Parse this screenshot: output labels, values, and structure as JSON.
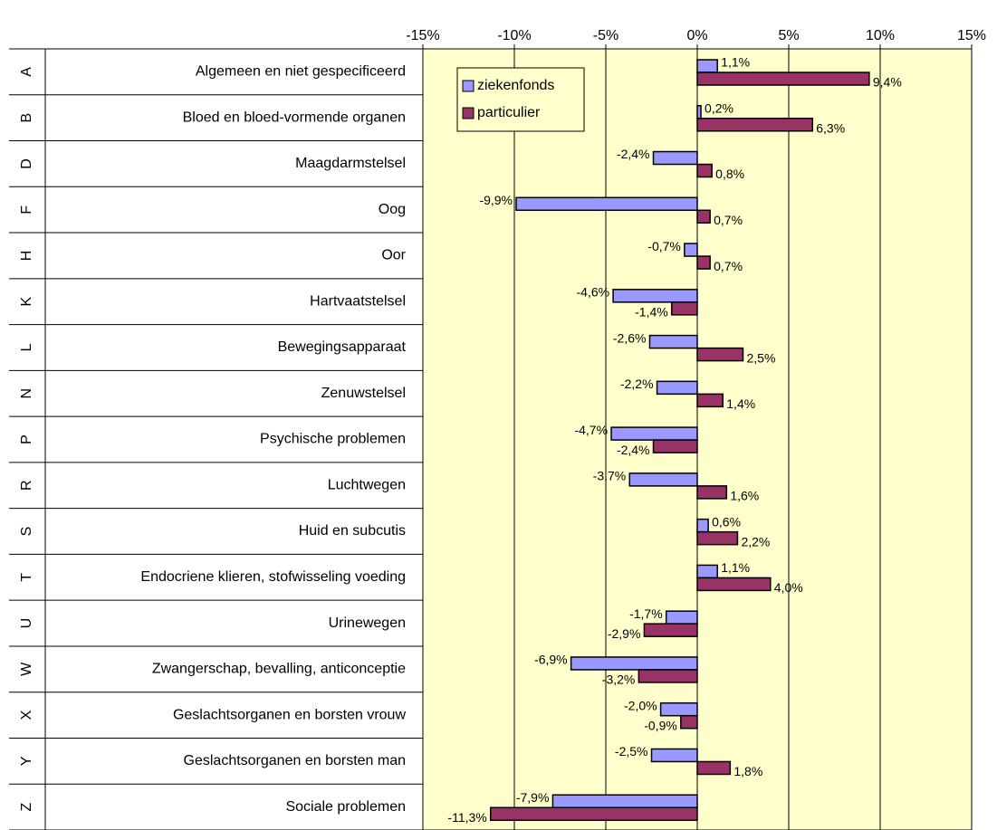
{
  "chart_data": {
    "type": "hbar",
    "codes": [
      "A",
      "B",
      "D",
      "F",
      "H",
      "K",
      "L",
      "N",
      "P",
      "R",
      "S",
      "T",
      "U",
      "W",
      "X",
      "Y",
      "Z"
    ],
    "categories": [
      "Algemeen en niet gespecificeerd",
      "Bloed en bloed-vormende organen",
      "Maagdarmstelsel",
      "Oog",
      "Oor",
      "Hartvaatstelsel",
      "Bewegingsapparaat",
      "Zenuwstelsel",
      "Psychische problemen",
      "Luchtwegen",
      "Huid en subcutis",
      "Endocriene klieren, stofwisseling voeding",
      "Urinewegen",
      "Zwangerschap, bevalling, anticonceptie",
      "Geslachtsorganen en borsten vrouw",
      "Geslachtsorganen en borsten man",
      "Sociale problemen"
    ],
    "series": [
      {
        "name": "ziekenfonds",
        "color": "#9999ff",
        "values": [
          1.1,
          0.2,
          -2.4,
          -9.9,
          -0.7,
          -4.6,
          -2.6,
          -2.2,
          -4.7,
          -3.7,
          0.6,
          1.1,
          -1.7,
          -6.9,
          -2.0,
          -2.5,
          -7.9
        ],
        "value_labels": [
          "1,1%",
          "0,2%",
          "-2,4%",
          "-9,9%",
          "-0,7%",
          "-4,6%",
          "-2,6%",
          "-2,2%",
          "-4,7%",
          "-3,7%",
          "0,6%",
          "1,1%",
          "-1,7%",
          "-6,9%",
          "-2,0%",
          "-2,5%",
          "-7,9%"
        ]
      },
      {
        "name": "particulier",
        "color": "#993366",
        "values": [
          9.4,
          6.3,
          0.8,
          0.7,
          0.7,
          -1.4,
          2.5,
          1.4,
          -2.4,
          1.6,
          2.2,
          4.0,
          -2.9,
          -3.2,
          -0.9,
          1.8,
          -11.3
        ],
        "value_labels": [
          "9,4%",
          "6,3%",
          "0,8%",
          "0,7%",
          "0,7%",
          "-1,4%",
          "2,5%",
          "1,4%",
          "-2,4%",
          "1,6%",
          "2,2%",
          "4,0%",
          "-2,9%",
          "-3,2%",
          "-0,9%",
          "1,8%",
          "-11,3%"
        ]
      }
    ],
    "xlim": [
      -15,
      15
    ],
    "xticks": [
      {
        "value": -15,
        "label": "-15%"
      },
      {
        "value": -10,
        "label": "-10%"
      },
      {
        "value": -5,
        "label": "-5%"
      },
      {
        "value": 0,
        "label": "0%"
      },
      {
        "value": 5,
        "label": "5%"
      },
      {
        "value": 10,
        "label": "10%"
      },
      {
        "value": 15,
        "label": "15%"
      }
    ],
    "grid": true,
    "legend": "top-left",
    "plot_background": "#ffffcc"
  }
}
